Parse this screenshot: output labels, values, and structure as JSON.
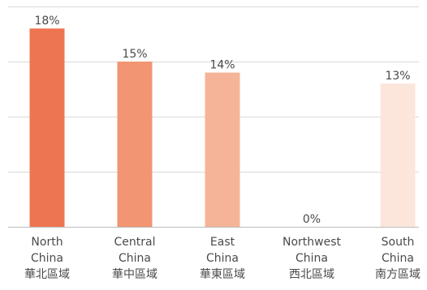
{
  "chart_data": {
    "type": "bar",
    "categories": [
      {
        "lines": [
          "North",
          "China",
          "華北區域"
        ]
      },
      {
        "lines": [
          "Central",
          "China",
          "華中區域"
        ]
      },
      {
        "lines": [
          "East",
          "China",
          "華東區域"
        ]
      },
      {
        "lines": [
          "Northwest",
          "China",
          "西北區域"
        ]
      },
      {
        "lines": [
          "South",
          "China",
          "南方區域"
        ]
      }
    ],
    "values": [
      18,
      15,
      14,
      0,
      13
    ],
    "value_labels": [
      "18%",
      "15%",
      "14%",
      "0%",
      "13%"
    ],
    "bar_colors": [
      "#ee7552",
      "#f19572",
      "#f5b497",
      "#f8d2bb",
      "#fce6dc"
    ],
    "ylim": [
      0,
      20
    ],
    "y_gridlines": [
      0,
      5,
      10,
      15,
      20
    ],
    "grid": true,
    "legend": "none"
  }
}
